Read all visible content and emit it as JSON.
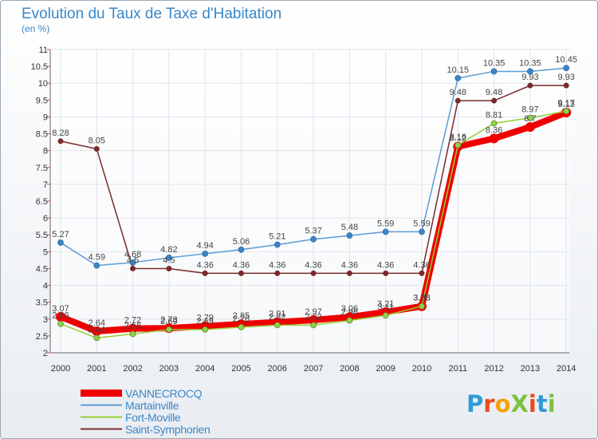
{
  "title": "Evolution du Taux de Taxe d'Habitation",
  "unit": "(en %)",
  "logo": {
    "text": "ProXiti",
    "letters": [
      "P",
      "r",
      "o",
      "X",
      "i",
      "t",
      "i"
    ],
    "colors": [
      "#2e9bd6",
      "#e84c1c",
      "#f2a20c",
      "#7cc242",
      "#e84c1c",
      "#2e9bd6",
      "#7cc242"
    ]
  },
  "chart_data": {
    "type": "line",
    "title": "Evolution du Taux de Taxe d'Habitation",
    "ylabel": "(en %)",
    "x": [
      2000,
      2001,
      2002,
      2003,
      2004,
      2005,
      2006,
      2007,
      2008,
      2009,
      2010,
      2011,
      2012,
      2013,
      2014
    ],
    "ylim": [
      2,
      11
    ],
    "yticks": [
      2,
      2.5,
      3,
      3.5,
      4,
      4.5,
      5,
      5.5,
      6,
      6.5,
      7,
      7.5,
      8,
      8.5,
      9,
      9.5,
      10,
      10.5,
      11
    ],
    "grid": true,
    "legend_position": "bottom-left",
    "series": [
      {
        "name": "VANNECROCQ",
        "color": "#ee0000",
        "values": [
          3.07,
          2.64,
          2.72,
          2.73,
          2.79,
          2.85,
          2.91,
          2.97,
          3.06,
          3.21,
          3.38,
          8.12,
          8.36,
          8.7,
          9.13
        ],
        "labels": [
          "3.07",
          "2.64",
          "2.72",
          "2.73",
          "2.79",
          "2.85",
          "2.91",
          "2.97",
          "3.06",
          "3.21",
          "3.38",
          "8.12",
          "8.36",
          "8.7",
          "9.13"
        ]
      },
      {
        "name": "Martainville",
        "color": "#5b9bd5",
        "values": [
          5.27,
          4.59,
          4.68,
          4.82,
          4.94,
          5.06,
          5.21,
          5.37,
          5.48,
          5.59,
          5.59,
          10.15,
          10.35,
          10.35,
          10.45
        ],
        "labels": [
          "5.27",
          "4.59",
          "4.68",
          "4.82",
          "4.94",
          "5.06",
          "5.21",
          "5.37",
          "5.48",
          "5.59",
          "5.59",
          "10.15",
          "10.35",
          "10.35",
          "10.45"
        ]
      },
      {
        "name": "Fort-Moville",
        "color": "#9acd32",
        "values": [
          2.86,
          2.44,
          2.56,
          2.69,
          2.69,
          2.76,
          2.82,
          2.82,
          2.96,
          3.11,
          3.38,
          8.16,
          8.81,
          8.97,
          9.17
        ],
        "labels": [
          "2.86",
          "2.44",
          "2.56",
          "2.69",
          "2.69",
          "2.76",
          "2.82",
          "2.82",
          "2.96",
          "3.11",
          "3.38",
          "8.16",
          "8.81",
          "8.97",
          "9.17"
        ]
      },
      {
        "name": "Saint-Symphorien",
        "color": "#7a2a2a",
        "values": [
          8.28,
          8.05,
          4.5,
          4.5,
          4.36,
          4.36,
          4.36,
          4.36,
          4.36,
          4.36,
          4.36,
          9.48,
          9.48,
          9.93,
          9.93
        ],
        "labels": [
          "8.28",
          "8.05",
          "4.5",
          "4.5",
          "4.36",
          "4.36",
          "4.36",
          "4.36",
          "4.36",
          "4.36",
          "4.36",
          "9.48",
          "9.48",
          "9.93",
          "9.93"
        ]
      }
    ]
  }
}
